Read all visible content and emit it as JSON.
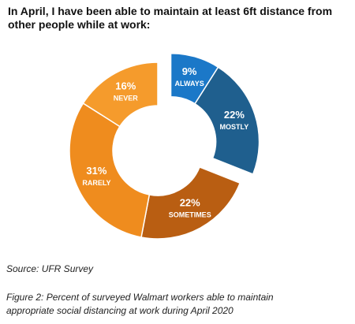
{
  "chart_data": {
    "type": "donut",
    "title": "In April, I have been able to maintain at least 6ft distance from other people while at work:",
    "categories": [
      "ALWAYS",
      "MOSTLY",
      "SOMETIMES",
      "RARELY",
      "NEVER"
    ],
    "values": [
      9,
      22,
      22,
      31,
      16
    ],
    "value_labels": [
      "9%",
      "22%",
      "22%",
      "31%",
      "16%"
    ],
    "colors": [
      "#1b78c8",
      "#1f5f8e",
      "#b95e12",
      "#ef8c1e",
      "#f59b2c"
    ],
    "explode": [
      true,
      true,
      false,
      false,
      false
    ],
    "source": "Source: UFR Survey",
    "caption": "Figure 2: Percent of surveyed Walmart workers able to maintain appropriate social distancing at work during April 2020"
  }
}
